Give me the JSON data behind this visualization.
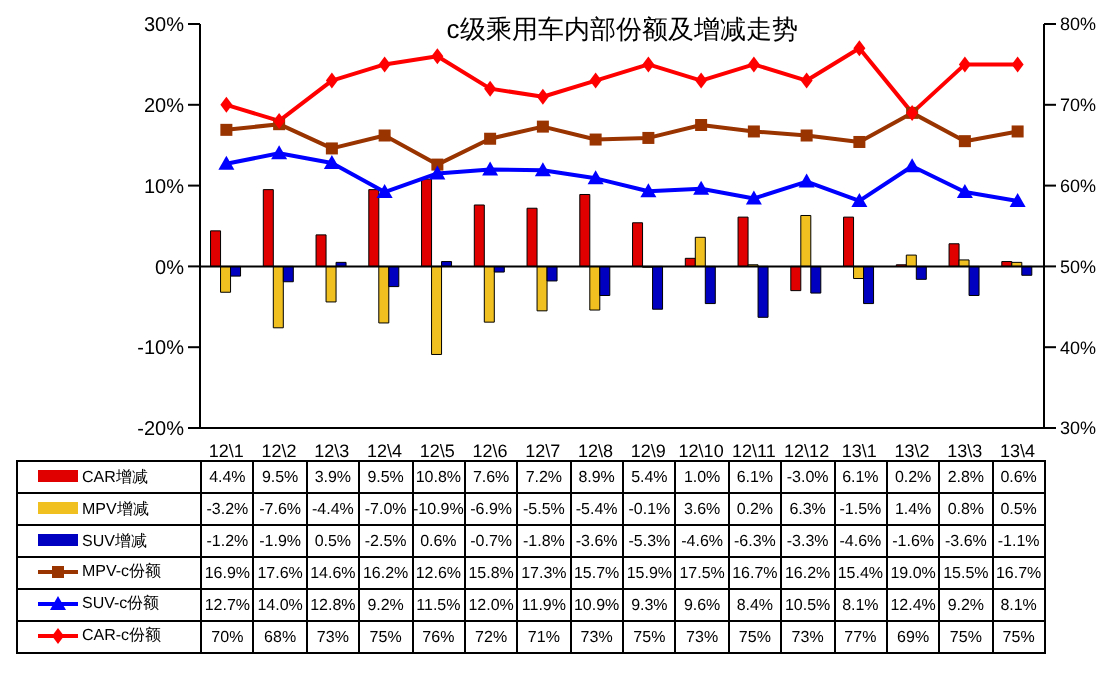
{
  "chart_data": {
    "type": "bar",
    "title": "c级乘用车内部份额及增减走势",
    "categories": [
      "12\\1",
      "12\\2",
      "12\\3",
      "12\\4",
      "12\\5",
      "12\\6",
      "12\\7",
      "12\\8",
      "12\\9",
      "12\\10",
      "12\\11",
      "12\\12",
      "13\\1",
      "13\\2",
      "13\\3",
      "13\\4"
    ],
    "ylim": [
      -20,
      30
    ],
    "yticks": [
      {
        "value": -20,
        "label": "-20%"
      },
      {
        "value": -10,
        "label": "-10%"
      },
      {
        "value": 0,
        "label": "0%"
      },
      {
        "value": 10,
        "label": "10%"
      },
      {
        "value": 20,
        "label": "20%"
      },
      {
        "value": 30,
        "label": "30%"
      }
    ],
    "y2lim": [
      30,
      80
    ],
    "y2ticks": [
      {
        "value": 30,
        "label": "30%"
      },
      {
        "value": 40,
        "label": "40%"
      },
      {
        "value": 50,
        "label": "50%"
      },
      {
        "value": 60,
        "label": "60%"
      },
      {
        "value": 70,
        "label": "70%"
      },
      {
        "value": 80,
        "label": "80%"
      }
    ],
    "grid": false,
    "legend": "bottom",
    "ref_lines": [
      {
        "axis": "y",
        "value": 0,
        "color": "#000000"
      }
    ],
    "series": [
      {
        "name": "CAR增减",
        "color": "#e00000",
        "values": [
          4.4,
          9.5,
          3.9,
          9.5,
          10.8,
          7.6,
          7.2,
          8.9,
          5.4,
          1.0,
          6.1,
          -3.0,
          6.1,
          0.2,
          2.8,
          0.6
        ],
        "value_labels": [
          "4.4%",
          "9.5%",
          "3.9%",
          "9.5%",
          "10.8%",
          "7.6%",
          "7.2%",
          "8.9%",
          "5.4%",
          "1.0%",
          "6.1%",
          "-3.0%",
          "6.1%",
          "0.2%",
          "2.8%",
          "0.6%"
        ]
      },
      {
        "name": "MPV增减",
        "color": "#f0c020",
        "values": [
          -3.2,
          -7.6,
          -4.4,
          -7.0,
          -10.9,
          -6.9,
          -5.5,
          -5.4,
          -0.1,
          3.6,
          0.2,
          6.3,
          -1.5,
          1.4,
          0.8,
          0.5
        ],
        "value_labels": [
          "-3.2%",
          "-7.6%",
          "-4.4%",
          "-7.0%",
          "-10.9%",
          "-6.9%",
          "-5.5%",
          "-5.4%",
          "-0.1%",
          "3.6%",
          "0.2%",
          "6.3%",
          "-1.5%",
          "1.4%",
          "0.8%",
          "0.5%"
        ]
      },
      {
        "name": "SUV增减",
        "color": "#0000c0",
        "values": [
          -1.2,
          -1.9,
          0.5,
          -2.5,
          0.6,
          -0.7,
          -1.8,
          -3.6,
          -5.3,
          -4.6,
          -6.3,
          -3.3,
          -4.6,
          -1.6,
          -3.6,
          -1.1
        ],
        "value_labels": [
          "-1.2%",
          "-1.9%",
          "0.5%",
          "-2.5%",
          "0.6%",
          "-0.7%",
          "-1.8%",
          "-3.6%",
          "-5.3%",
          "-4.6%",
          "-6.3%",
          "-3.3%",
          "-4.6%",
          "-1.6%",
          "-3.6%",
          "-1.1%"
        ]
      },
      {
        "name": "MPV-c份额",
        "type": "line",
        "marker": "square",
        "color": "#993300",
        "values": [
          16.9,
          17.6,
          14.6,
          16.2,
          12.6,
          15.8,
          17.3,
          15.7,
          15.9,
          17.5,
          16.7,
          16.2,
          15.4,
          19.0,
          15.5,
          16.7
        ],
        "value_labels": [
          "16.9%",
          "17.6%",
          "14.6%",
          "16.2%",
          "12.6%",
          "15.8%",
          "17.3%",
          "15.7%",
          "15.9%",
          "17.5%",
          "16.7%",
          "16.2%",
          "15.4%",
          "19.0%",
          "15.5%",
          "16.7%"
        ]
      },
      {
        "name": "SUV-c份额",
        "type": "line",
        "marker": "triangle",
        "color": "#0000ff",
        "values": [
          12.7,
          14.0,
          12.8,
          9.2,
          11.5,
          12.0,
          11.9,
          10.9,
          9.3,
          9.6,
          8.4,
          10.5,
          8.1,
          12.4,
          9.2,
          8.1
        ],
        "value_labels": [
          "12.7%",
          "14.0%",
          "12.8%",
          "9.2%",
          "11.5%",
          "12.0%",
          "11.9%",
          "10.9%",
          "9.3%",
          "9.6%",
          "8.4%",
          "10.5%",
          "8.1%",
          "12.4%",
          "9.2%",
          "8.1%"
        ]
      },
      {
        "name": "CAR-c份额",
        "type": "line",
        "marker": "diamond",
        "axis": "y2",
        "color": "#ff0000",
        "values": [
          70,
          68,
          73,
          75,
          76,
          72,
          71,
          73,
          75,
          73,
          75,
          73,
          77,
          69,
          75,
          75
        ],
        "value_labels": [
          "70%",
          "68%",
          "73%",
          "75%",
          "76%",
          "72%",
          "71%",
          "73%",
          "75%",
          "73%",
          "75%",
          "73%",
          "77%",
          "69%",
          "75%",
          "75%"
        ]
      }
    ]
  }
}
